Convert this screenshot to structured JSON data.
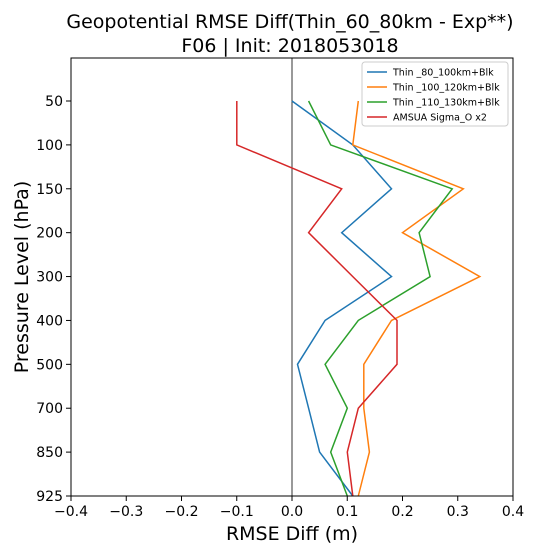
{
  "chart_data": {
    "type": "line",
    "title": "Geopotential RMSE Diff(Thin_60_80km - Exp**)",
    "subtitle": "F06 | Init: 2018053018",
    "xlabel": "RMSE Diff (m)",
    "ylabel": "Pressure Level (hPa)",
    "xlim": [
      -0.4,
      0.4
    ],
    "x_ticks": [
      -0.4,
      -0.3,
      -0.2,
      -0.1,
      0.0,
      0.1,
      0.2,
      0.3,
      0.4
    ],
    "x_tick_labels": [
      "−0.4",
      "−0.3",
      "−0.2",
      "−0.1",
      "0.0",
      "0.1",
      "0.2",
      "0.3",
      "0.4"
    ],
    "y_levels": [
      50,
      100,
      150,
      200,
      300,
      400,
      500,
      700,
      850,
      925
    ],
    "y_tick_labels": [
      "50",
      "100",
      "150",
      "200",
      "300",
      "400",
      "500",
      "700",
      "850",
      "925"
    ],
    "y_inverted": true,
    "zero_line": 0.0,
    "grid": false,
    "legend_position": "top-right",
    "series": [
      {
        "name": "Thin _80_100km+Blk",
        "color": "#1f77b4",
        "values": [
          0.0,
          0.11,
          0.18,
          0.09,
          0.18,
          0.06,
          0.01,
          0.03,
          0.05,
          0.11
        ]
      },
      {
        "name": "Thin _100_120km+Blk",
        "color": "#ff7f0e",
        "values": [
          0.12,
          0.11,
          0.31,
          0.2,
          0.34,
          0.18,
          0.13,
          0.13,
          0.14,
          0.12
        ]
      },
      {
        "name": "Thin _110_130km+Blk",
        "color": "#2ca02c",
        "values": [
          0.03,
          0.07,
          0.29,
          0.23,
          0.25,
          0.12,
          0.06,
          0.1,
          0.07,
          0.1
        ]
      },
      {
        "name": "AMSUA Sigma_O x2",
        "color": "#d62728",
        "values": [
          -0.1,
          -0.1,
          0.09,
          0.03,
          0.11,
          0.19,
          0.19,
          0.12,
          0.1,
          0.11
        ]
      }
    ]
  }
}
